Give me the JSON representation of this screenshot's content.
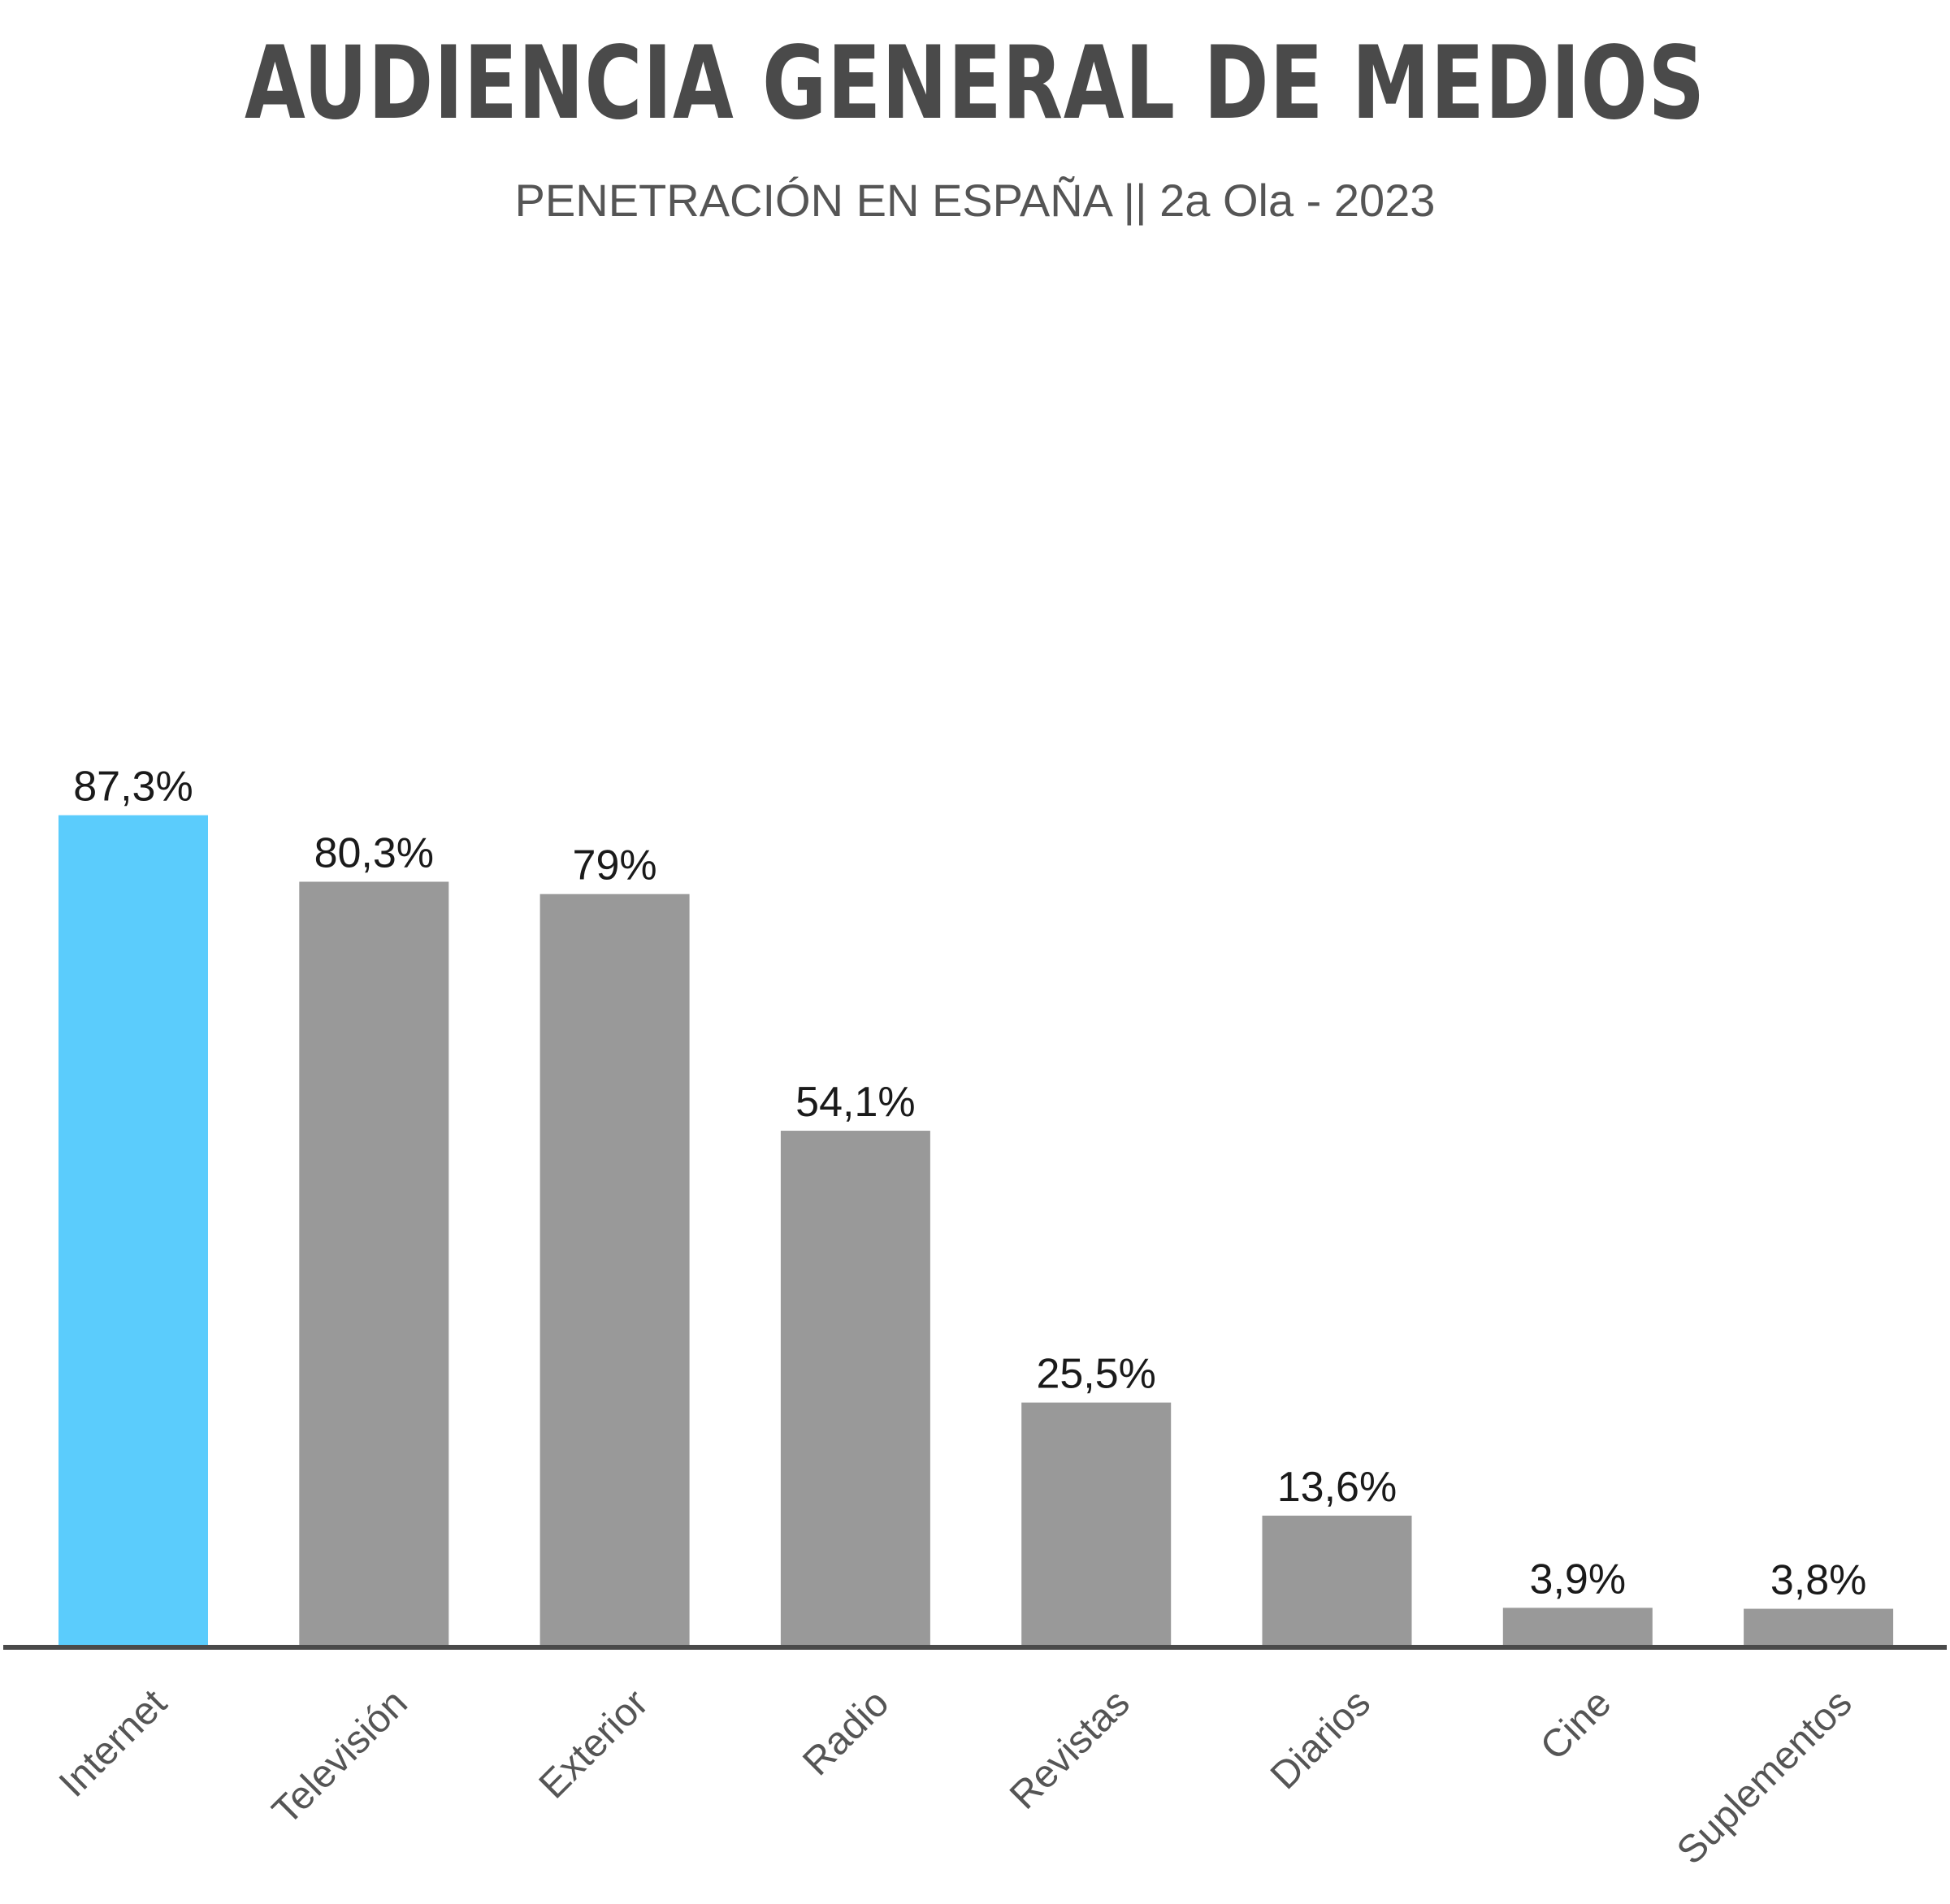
{
  "chart_data": {
    "type": "bar",
    "title": "AUDIENCIA GENERAL DE MEDIOS",
    "subtitle": "PENETRACIÓN EN ESPAÑA || 2a Ola - 2023",
    "categories": [
      "Internet",
      "Televisión",
      "Exterior",
      "Radio",
      "Revistas",
      "Diarios",
      "Cine",
      "Suplementos"
    ],
    "values": [
      87.3,
      80.3,
      79,
      54.1,
      25.5,
      13.6,
      3.9,
      3.8
    ],
    "value_labels": [
      "87,3%",
      "80,3%",
      "79%",
      "54,1%",
      "25,5%",
      "13,6%",
      "3,9%",
      "3,8%"
    ],
    "unit": "%",
    "ylim": [
      0,
      100
    ],
    "grid": false,
    "legend": "none",
    "colors": {
      "highlight": "#5bccfc",
      "default": "#999999",
      "axis": "#4a4a4a"
    },
    "highlight_index": 0
  }
}
